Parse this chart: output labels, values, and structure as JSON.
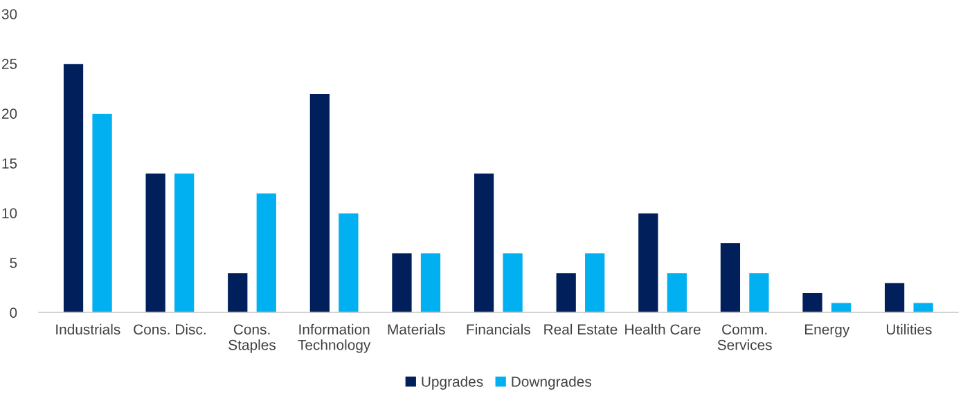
{
  "chart_data": {
    "type": "bar",
    "categories": [
      "Industrials",
      "Cons. Disc.",
      "Cons.\nStaples",
      "Information\nTechnology",
      "Materials",
      "Financials",
      "Real Estate",
      "Health Care",
      "Comm.\nServices",
      "Energy",
      "Utilities"
    ],
    "series": [
      {
        "name": "Upgrades",
        "color": "#001f5b",
        "values": [
          25,
          14,
          4,
          22,
          6,
          14,
          4,
          10,
          7,
          2,
          3
        ]
      },
      {
        "name": "Downgrades",
        "color": "#00b0f0",
        "values": [
          20,
          14,
          12,
          10,
          6,
          6,
          6,
          4,
          4,
          1,
          1
        ]
      }
    ],
    "ylim": [
      0,
      30
    ],
    "yticks": [
      0,
      5,
      10,
      15,
      20,
      25,
      30
    ],
    "grid": false,
    "legend": "bottom"
  }
}
